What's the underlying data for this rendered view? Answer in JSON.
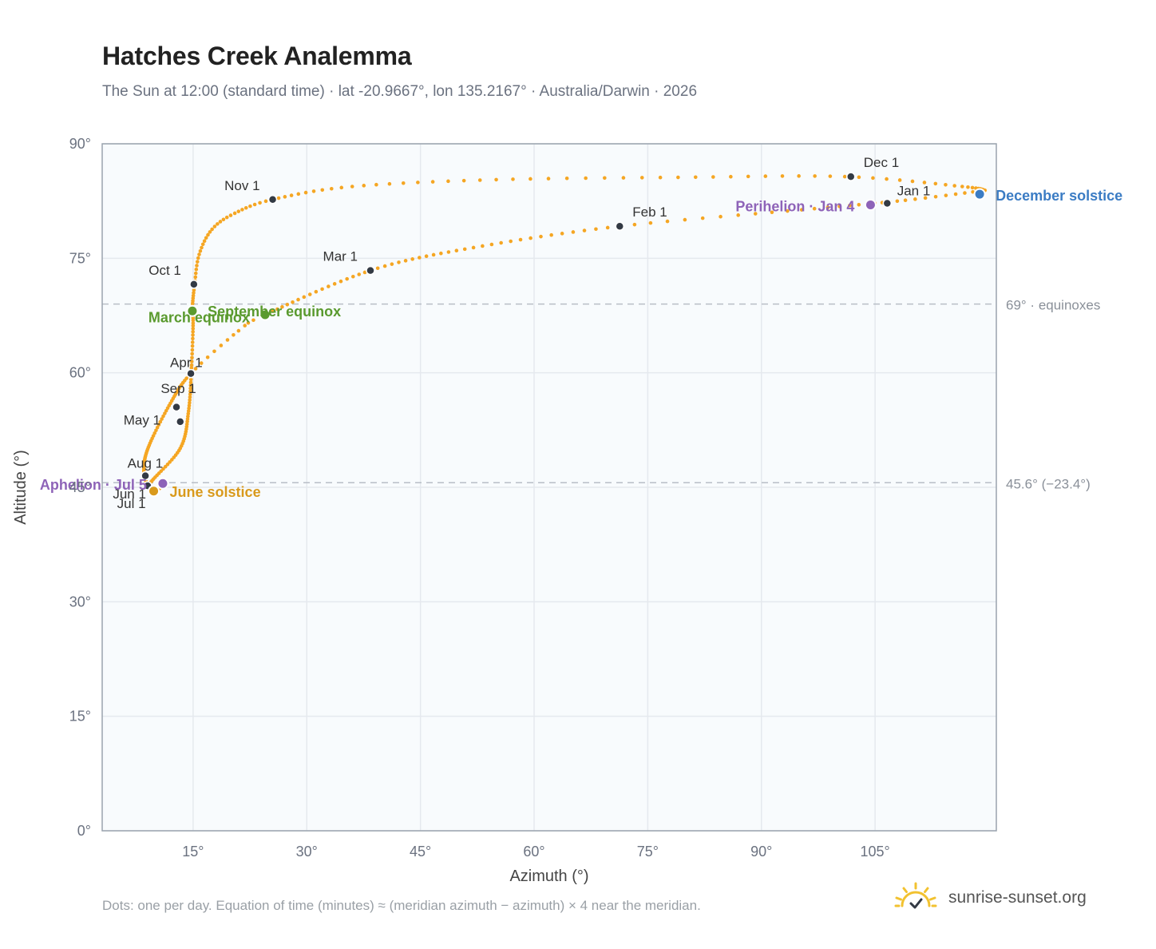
{
  "header": {
    "title": "Hatches Creek Analemma",
    "subtitle": "The Sun at 12:00 (standard time) · lat -20.9667°, lon 135.2167° · Australia/Darwin · 2026"
  },
  "footer": {
    "note": "Dots: one per day. Equation of time (minutes) ≈ (meridian azimuth − azimuth) × 4 near the meridian.",
    "brand": "sunrise-sunset.org"
  },
  "colors": {
    "path": "#f5a623",
    "month_marker": "#333a44",
    "equinox": "#5a9a2e",
    "solstice_june": "#d99a1c",
    "solstice_december": "#3b7cc4",
    "apsis": "#8e63b8",
    "plot_bg": "#f8fbfd",
    "grid": "#e5e9ee",
    "frame": "#9aa3ae"
  },
  "chart_data": {
    "type": "scatter",
    "title": "Hatches Creek Analemma",
    "xlabel": "Azimuth (°)",
    "ylabel": "Altitude (°)",
    "xlim": [
      3,
      121
    ],
    "ylim": [
      0,
      90
    ],
    "xticks": [
      15,
      30,
      45,
      60,
      75,
      90,
      105
    ],
    "yticks": [
      0,
      15,
      30,
      45,
      60,
      75,
      90
    ],
    "tick_suffix": "°",
    "grid": true,
    "reference_lines": [
      {
        "y": 69.0,
        "label": "69° · equinoxes"
      },
      {
        "y": 45.6,
        "label": "45.6° (−23.4°)"
      }
    ],
    "path_keypoints": [
      {
        "doy": 1,
        "az": 119.5,
        "alt": 83.9
      },
      {
        "doy": 10,
        "az": 109.0,
        "alt": 82.6
      },
      {
        "doy": 20,
        "az": 97.0,
        "alt": 81.5
      },
      {
        "doy": 32,
        "az": 71.3,
        "alt": 79.2
      },
      {
        "doy": 46,
        "az": 52.0,
        "alt": 76.4
      },
      {
        "doy": 60,
        "az": 38.4,
        "alt": 73.4
      },
      {
        "doy": 79,
        "az": 24.5,
        "alt": 67.6
      },
      {
        "doy": 83,
        "az": 21.0,
        "alt": 65.5
      },
      {
        "doy": 91,
        "az": 14.7,
        "alt": 59.9
      },
      {
        "doy": 105,
        "az": 12.0,
        "alt": 56.0
      },
      {
        "doy": 121,
        "az": 9.2,
        "alt": 50.5
      },
      {
        "doy": 136,
        "az": 8.5,
        "alt": 47.5
      },
      {
        "doy": 152,
        "az": 9.0,
        "alt": 45.2
      },
      {
        "doy": 162,
        "az": 9.8,
        "alt": 44.5
      },
      {
        "doy": 172,
        "az": 10.9,
        "alt": 45.1
      },
      {
        "doy": 182,
        "az": 9.8,
        "alt": 44.6
      },
      {
        "doy": 196,
        "az": 9.3,
        "alt": 45.5
      },
      {
        "doy": 213,
        "az": 13.3,
        "alt": 50.1
      },
      {
        "doy": 228,
        "az": 14.4,
        "alt": 55.0
      },
      {
        "doy": 244,
        "az": 14.8,
        "alt": 61.0
      },
      {
        "doy": 256,
        "az": 15.0,
        "alt": 66.5
      },
      {
        "doy": 265,
        "az": 14.9,
        "alt": 68.5
      },
      {
        "doy": 274,
        "az": 15.2,
        "alt": 71.6
      },
      {
        "doy": 282,
        "az": 15.8,
        "alt": 75.5
      },
      {
        "doy": 290,
        "az": 17.5,
        "alt": 78.8
      },
      {
        "doy": 297,
        "az": 20.5,
        "alt": 80.9
      },
      {
        "doy": 305,
        "az": 25.5,
        "alt": 82.7
      },
      {
        "doy": 315,
        "az": 36.0,
        "alt": 84.4
      },
      {
        "doy": 325,
        "az": 55.0,
        "alt": 85.3
      },
      {
        "doy": 335,
        "az": 79.0,
        "alt": 85.6
      },
      {
        "doy": 345,
        "az": 101.0,
        "alt": 85.7
      },
      {
        "doy": 355,
        "az": 116.5,
        "alt": 84.4
      },
      {
        "doy": 366,
        "az": 119.5,
        "alt": 83.9
      }
    ],
    "month_markers": [
      {
        "label": "Jan 1",
        "az": 106.6,
        "alt": 82.2,
        "anchor": "end",
        "dx": 54,
        "dy": -10
      },
      {
        "label": "Feb 1",
        "az": 71.3,
        "alt": 79.2,
        "anchor": "start",
        "dx": 16,
        "dy": -12
      },
      {
        "label": "Mar 1",
        "az": 38.4,
        "alt": 73.4,
        "anchor": "end",
        "dx": -16,
        "dy": -12
      },
      {
        "label": "Apr 1",
        "az": 14.7,
        "alt": 59.9,
        "anchor": "start",
        "dx": -26,
        "dy": -8
      },
      {
        "label": "May 1",
        "az": 12.8,
        "alt": 55.5,
        "anchor": "end",
        "dx": -20,
        "dy": 22
      },
      {
        "label": "Jun 1",
        "az": 9.0,
        "alt": 45.2,
        "anchor": "end",
        "dx": -2,
        "dy": 16
      },
      {
        "label": "Jul 1",
        "az": 9.8,
        "alt": 44.6,
        "anchor": "end",
        "dx": -10,
        "dy": 22
      },
      {
        "label": "Aug 1",
        "az": 8.7,
        "alt": 46.5,
        "anchor": "end",
        "dx": 22,
        "dy": -10
      },
      {
        "label": "Sep 1",
        "az": 13.3,
        "alt": 53.6,
        "anchor": "end",
        "dx": 20,
        "dy": -36
      },
      {
        "label": "Oct 1",
        "az": 15.1,
        "alt": 71.6,
        "anchor": "end",
        "dx": -16,
        "dy": -12
      },
      {
        "label": "Nov 1",
        "az": 25.5,
        "alt": 82.7,
        "anchor": "end",
        "dx": -16,
        "dy": -12
      },
      {
        "label": "Dec 1",
        "az": 101.8,
        "alt": 85.7,
        "anchor": "start",
        "dx": 16,
        "dy": -12
      }
    ],
    "events": [
      {
        "label": "December solstice",
        "az": 118.8,
        "alt": 83.4,
        "color_key": "solstice_december",
        "anchor": "start",
        "dx": 20,
        "dy": 8
      },
      {
        "label": "Perihelion · Jan 4",
        "az": 104.4,
        "alt": 82.0,
        "color_key": "apsis",
        "anchor": "end",
        "dx": -20,
        "dy": 8
      },
      {
        "label": "March equinox",
        "az": 14.9,
        "alt": 68.1,
        "color_key": "equinox",
        "anchor": "end",
        "dx": 72,
        "dy": 14
      },
      {
        "label": "September equinox",
        "az": 24.5,
        "alt": 67.6,
        "color_key": "equinox",
        "anchor": "start",
        "dx": -72,
        "dy": 2
      },
      {
        "label": "June solstice",
        "az": 9.8,
        "alt": 44.5,
        "color_key": "solstice_june",
        "anchor": "start",
        "dx": 20,
        "dy": 7
      },
      {
        "label": "Aphelion · Jul 5",
        "az": 11.0,
        "alt": 45.5,
        "color_key": "apsis",
        "anchor": "end",
        "dx": -20,
        "dy": 8
      }
    ]
  }
}
